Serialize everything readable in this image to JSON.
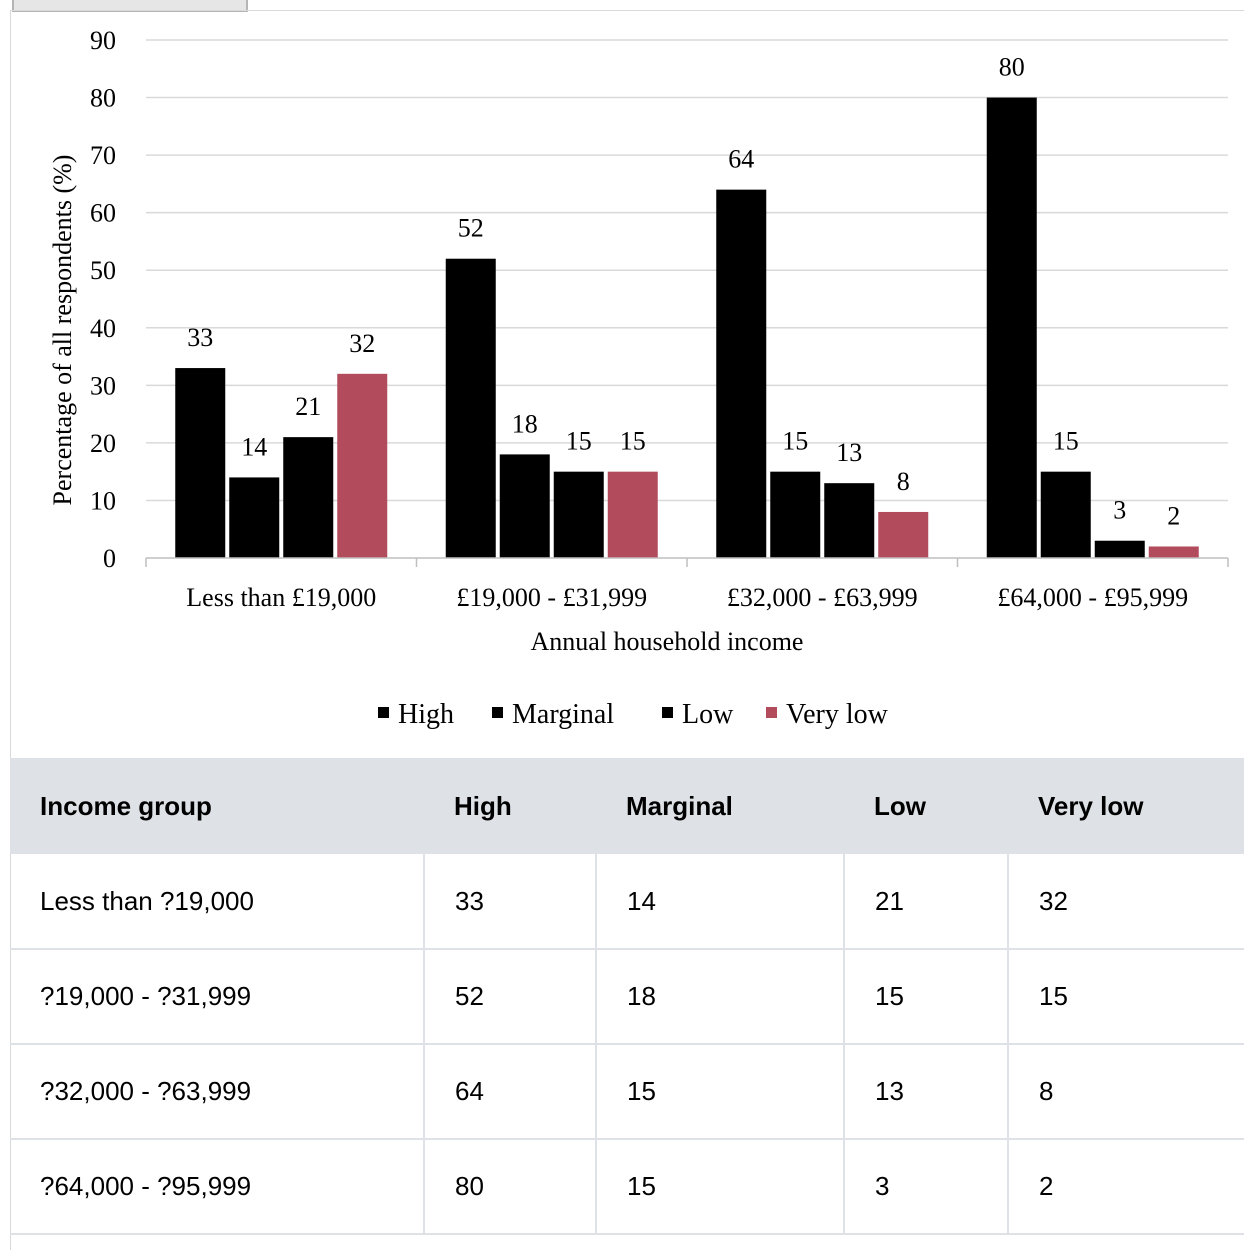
{
  "chart_data": {
    "type": "bar",
    "categories": [
      "Less than £19,000",
      "£19,000 - £31,999",
      "£32,000 - £63,999",
      "£64,000 - £95,999"
    ],
    "series": [
      {
        "name": "High",
        "values": [
          33,
          52,
          64,
          80
        ],
        "labels": [
          "33",
          "52",
          "64",
          "80"
        ],
        "color": "#000000"
      },
      {
        "name": "Marginal",
        "values": [
          14,
          18,
          15,
          15
        ],
        "labels": [
          "14",
          "18",
          "15",
          "15"
        ],
        "color": "#000000"
      },
      {
        "name": "Low",
        "values": [
          21,
          15,
          13,
          3
        ],
        "labels": [
          "21",
          "15",
          "13",
          "3"
        ],
        "color": "#000000"
      },
      {
        "name": "Very low",
        "values": [
          32,
          15,
          8,
          2
        ],
        "labels": [
          "32",
          "15",
          "8",
          "2"
        ],
        "color": "#b24c5c"
      }
    ],
    "xlabel": "Annual household income",
    "ylabel": "Percentage of all respondents (%)",
    "ylim": [
      0,
      90
    ],
    "yticks": [
      "0",
      "10",
      "20",
      "30",
      "40",
      "50",
      "60",
      "70",
      "80",
      "90"
    ],
    "grid": true,
    "legend_position": "bottom"
  },
  "table": {
    "headers": [
      "Income group",
      "High",
      "Marginal",
      "Low",
      "Very low"
    ],
    "rows": [
      [
        "Less than ?19,000",
        "33",
        "14",
        "21",
        "32"
      ],
      [
        "?19,000 - ?31,999",
        "52",
        "18",
        "15",
        "15"
      ],
      [
        "?32,000 - ?63,999",
        "64",
        "15",
        "13",
        "8"
      ],
      [
        "?64,000 - ?95,999",
        "80",
        "15",
        "3",
        "2"
      ]
    ]
  }
}
